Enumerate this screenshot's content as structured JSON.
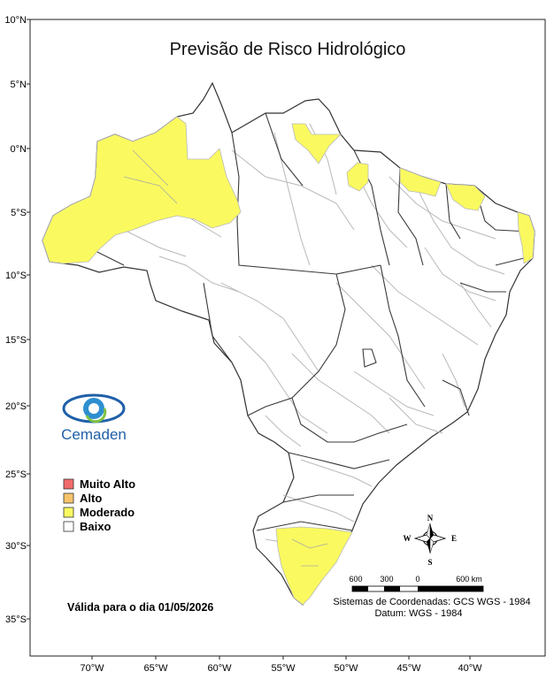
{
  "title": "Previsão de Risco Hidrológico",
  "latitude_ticks": [
    "10°N",
    "5°N",
    "0°N",
    "5°S",
    "10°S",
    "15°S",
    "20°S",
    "25°S",
    "30°S",
    "35°S"
  ],
  "longitude_ticks": [
    "70°W",
    "65°W",
    "60°W",
    "55°W",
    "50°W",
    "45°W",
    "40°W"
  ],
  "legend": [
    {
      "label": "Muito Alto",
      "color": "#f26b6b"
    },
    {
      "label": "Alto",
      "color": "#f7c46b"
    },
    {
      "label": "Moderado",
      "color": "#fafa60"
    },
    {
      "label": "Baixo",
      "color": "#ffffff"
    }
  ],
  "risk_levels_by_area": {
    "Moderado": [
      "western Amazonas / Acre",
      "Amapá / Pará border",
      "northern Maranhão coast",
      "Ceará coast",
      "eastern Rio Grande do Norte / Paraíba coast",
      "Rio Grande do Sul"
    ],
    "Baixo": [
      "rest of Brazil"
    ]
  },
  "validity": "Válida para o dia 01/05/2026",
  "logo": {
    "name": "Cemaden",
    "icon": "eye-logo-icon"
  },
  "compass": {
    "n": "N",
    "s": "S",
    "e": "E",
    "w": "W"
  },
  "scale_bar": {
    "labels": [
      "600",
      "300",
      "0",
      "600 km"
    ]
  },
  "coordinate_system": "Sistemas de Coordenadas: GCS WGS - 1984",
  "datum": "Datum: WGS - 1984",
  "colors": {
    "moderado": "#fafa60",
    "baixo": "#ffffff",
    "state_border": "#3a3a3a",
    "municipal_border": "#b9b9b9"
  }
}
